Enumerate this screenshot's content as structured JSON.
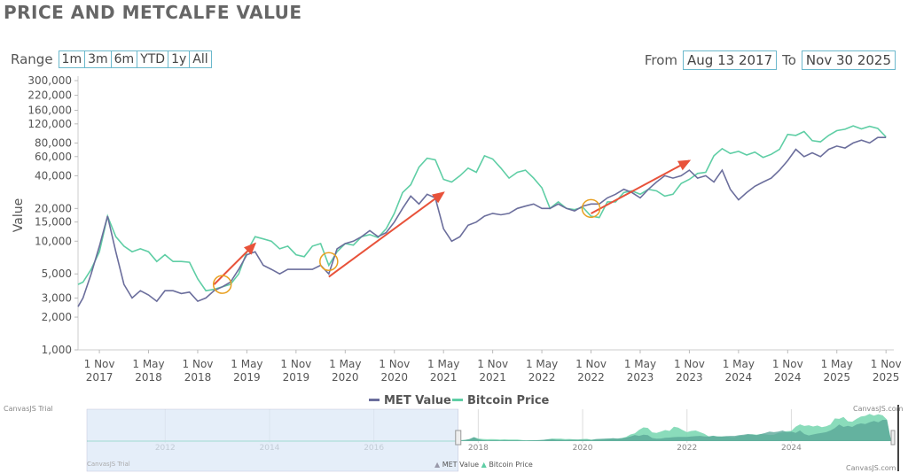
{
  "title": "PRICE AND METCALFE VALUE",
  "range_selector": {
    "label": "Range",
    "buttons": [
      "1m",
      "3m",
      "6m",
      "YTD",
      "1y",
      "All"
    ],
    "from_label": "From",
    "from_value": "Aug 13 2017",
    "to_label": "To",
    "to_value": "Nov 30 2025"
  },
  "watermarks": {
    "trial": "CanvasJS Trial",
    "site": "CanvasJS.com"
  },
  "colors": {
    "met": "#6b6e9c",
    "btc": "#5fcea5",
    "arrow": "#e8523a",
    "circle": "#e8a020"
  },
  "chart_data": {
    "type": "line",
    "ylabel": "Value",
    "y_scale": "log",
    "ylim": [
      1000,
      300000
    ],
    "y_ticks": [
      1000,
      2000,
      3000,
      5000,
      10000,
      15000,
      20000,
      40000,
      60000,
      80000,
      120000,
      160000,
      220000,
      300000
    ],
    "y_tick_labels": [
      "1,000",
      "2,000",
      "3,000",
      "5,000",
      "10,000",
      "15,000",
      "20,000",
      "40,000",
      "60,000",
      "80,000",
      "120,000",
      "160,000",
      "220,000",
      "300,000"
    ],
    "xlim": [
      "2017-08-13",
      "2025-11-30"
    ],
    "x_ticks": [
      "2017-11",
      "2018-05",
      "2018-11",
      "2019-05",
      "2019-11",
      "2020-05",
      "2020-11",
      "2021-05",
      "2021-11",
      "2022-05",
      "2022-11",
      "2023-05",
      "2023-11",
      "2024-05",
      "2024-11",
      "2025-05",
      "2025-11"
    ],
    "x_tick_labels": [
      [
        "1 Nov",
        "2017"
      ],
      [
        "1 May",
        "2018"
      ],
      [
        "1 Nov",
        "2018"
      ],
      [
        "1 May",
        "2019"
      ],
      [
        "1 Nov",
        "2019"
      ],
      [
        "1 May",
        "2020"
      ],
      [
        "1 Nov",
        "2020"
      ],
      [
        "1 May",
        "2021"
      ],
      [
        "1 Nov",
        "2021"
      ],
      [
        "1 May",
        "2022"
      ],
      [
        "1 Nov",
        "2022"
      ],
      [
        "1 May",
        "2023"
      ],
      [
        "1 Nov",
        "2023"
      ],
      [
        "1 May",
        "2024"
      ],
      [
        "1 Nov",
        "2024"
      ],
      [
        "1 May",
        "2025"
      ],
      [
        "1 Nov",
        "2025"
      ]
    ],
    "x_start": "2017-08",
    "x_step": "month",
    "legend_position": "bottom",
    "series": [
      {
        "name": "MET Value",
        "color": "#6b6e9c",
        "values": [
          2500,
          3000,
          5000,
          9000,
          17000,
          8000,
          4000,
          3000,
          3500,
          3200,
          2800,
          3500,
          3500,
          3300,
          3400,
          2800,
          3000,
          3500,
          3800,
          4200,
          5500,
          7500,
          8000,
          6000,
          5500,
          5000,
          5500,
          5500,
          5500,
          5500,
          6000,
          5000,
          8500,
          9500,
          10000,
          11000,
          12500,
          11000,
          12000,
          15000,
          20000,
          26000,
          22000,
          27000,
          25000,
          13000,
          10000,
          11000,
          14000,
          15000,
          17000,
          18000,
          17500,
          18000,
          20000,
          21000,
          22000,
          20000,
          20000,
          22000,
          20000,
          19000,
          21000,
          22000,
          22000,
          25000,
          27000,
          30000,
          28000,
          25000,
          30000,
          35000,
          40000,
          38000,
          40000,
          45000,
          38000,
          40000,
          35000,
          45000,
          30000,
          24000,
          28000,
          32000,
          35000,
          38000,
          45000,
          55000,
          70000,
          60000,
          65000,
          60000,
          70000,
          75000,
          72000,
          80000,
          85000,
          80000,
          90000,
          90000
        ]
      },
      {
        "name": "Bitcoin Price",
        "color": "#5fcea5",
        "values": [
          4000,
          4200,
          5500,
          8000,
          17000,
          11000,
          9000,
          8000,
          8500,
          8000,
          6500,
          7500,
          6500,
          6500,
          6400,
          4500,
          3500,
          3600,
          3800,
          4000,
          5000,
          8000,
          11000,
          10500,
          10000,
          8500,
          9000,
          7500,
          7200,
          9000,
          9500,
          6000,
          8000,
          9500,
          9200,
          11000,
          11500,
          10800,
          13000,
          18000,
          28000,
          33000,
          48000,
          58000,
          56000,
          37000,
          35000,
          40000,
          47000,
          43000,
          61000,
          57000,
          47000,
          38000,
          43000,
          45000,
          38000,
          31000,
          20000,
          23000,
          20000,
          19500,
          20500,
          17000,
          16500,
          23000,
          23000,
          28000,
          29000,
          27000,
          30000,
          29000,
          26000,
          27000,
          34000,
          37000,
          42000,
          43000,
          61000,
          71000,
          64000,
          67000,
          62000,
          66000,
          59000,
          63000,
          70000,
          96000,
          94000,
          102000,
          84000,
          82000,
          94000,
          104000,
          107000,
          115000,
          108000,
          114000,
          109000,
          91000
        ]
      }
    ],
    "annotations": {
      "arrows": [
        {
          "from": [
            "2019-01",
            4000
          ],
          "to": [
            "2019-06",
            9500
          ]
        },
        {
          "from": [
            "2020-03",
            4700
          ],
          "to": [
            "2021-05",
            28000
          ]
        },
        {
          "from": [
            "2022-11",
            18000
          ],
          "to": [
            "2023-11",
            55000
          ]
        }
      ],
      "circles": [
        {
          "at": [
            "2019-02",
            4000
          ]
        },
        {
          "at": [
            "2020-03",
            6500
          ]
        },
        {
          "at": [
            "2022-11",
            20000
          ]
        }
      ]
    },
    "navigator": {
      "x_tick_labels": [
        "2012",
        "2014",
        "2016",
        "2018",
        "2020",
        "2022",
        "2024"
      ],
      "range_start": "2010",
      "selected_from": "2017-08-13",
      "selected_to": "2025-11-30"
    }
  }
}
